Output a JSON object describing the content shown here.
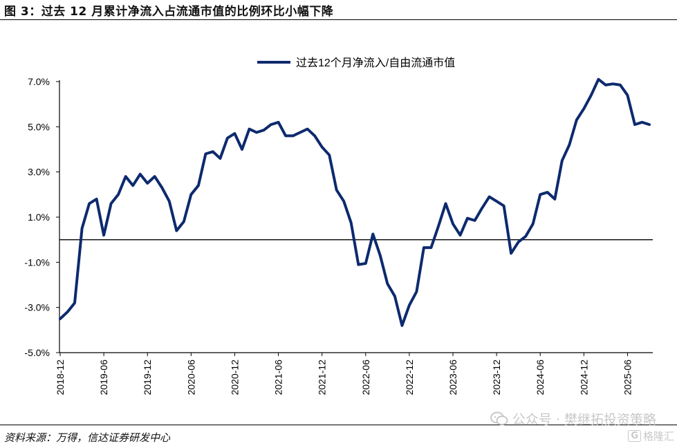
{
  "header": {
    "title": "图 3：过去 12 月累计净流入占流通市值的比例环比小幅下降"
  },
  "footer": {
    "source": "资料来源：万得，信达证券研发中心",
    "watermark_text": "公众号 · 樊继拓投资策略",
    "watermark_logo_text": "格隆汇",
    "watermark_logo_letter": "G",
    "icons": [
      "wechat-icon",
      "gelonghui-logo-icon"
    ]
  },
  "chart_data": {
    "type": "line",
    "title": "",
    "xlabel": "",
    "ylabel": "",
    "ylim": [
      -5.0,
      7.0
    ],
    "yticks": [
      "7.0%",
      "5.0%",
      "3.0%",
      "1.0%",
      "-1.0%",
      "-3.0%",
      "-5.0%"
    ],
    "ytick_values": [
      7,
      5,
      3,
      1,
      -1,
      -3,
      -5
    ],
    "xticks": [
      "2018-12",
      "2019-06",
      "2019-12",
      "2020-06",
      "2020-12",
      "2021-06",
      "2021-12",
      "2022-06",
      "2022-12",
      "2023-06",
      "2023-12",
      "2024-06",
      "2024-12",
      "2025-06"
    ],
    "xtick_indices": [
      0,
      6,
      12,
      18,
      24,
      30,
      36,
      42,
      48,
      54,
      60,
      66,
      72,
      78
    ],
    "grid": false,
    "zero_line": true,
    "legend": {
      "position": "top-right",
      "entries": [
        "过去12个月净流入/自由流通市值"
      ]
    },
    "line_color": "#0d2a6e",
    "series": [
      {
        "name": "过去12个月净流入/自由流通市值",
        "values": [
          -3.5,
          -3.2,
          -2.8,
          0.5,
          1.6,
          1.8,
          0.2,
          1.6,
          2.0,
          2.8,
          2.4,
          2.9,
          2.5,
          2.8,
          2.3,
          1.7,
          0.4,
          0.8,
          2.0,
          2.4,
          3.8,
          3.9,
          3.6,
          4.5,
          4.7,
          4.0,
          4.9,
          4.75,
          4.85,
          5.1,
          5.2,
          4.6,
          4.6,
          4.75,
          4.9,
          4.6,
          4.1,
          3.75,
          2.2,
          1.7,
          0.75,
          -1.1,
          -1.05,
          0.25,
          -0.7,
          -1.95,
          -2.5,
          -3.8,
          -2.9,
          -2.3,
          -0.35,
          -0.35,
          0.6,
          1.6,
          0.7,
          0.2,
          0.95,
          0.85,
          1.4,
          1.9,
          1.7,
          1.5,
          -0.6,
          -0.1,
          0.15,
          0.7,
          2.0,
          2.1,
          1.8,
          3.5,
          4.2,
          5.3,
          5.8,
          6.4,
          7.1,
          6.85,
          6.9,
          6.85,
          6.4,
          5.1,
          5.2,
          5.1
        ]
      }
    ]
  }
}
